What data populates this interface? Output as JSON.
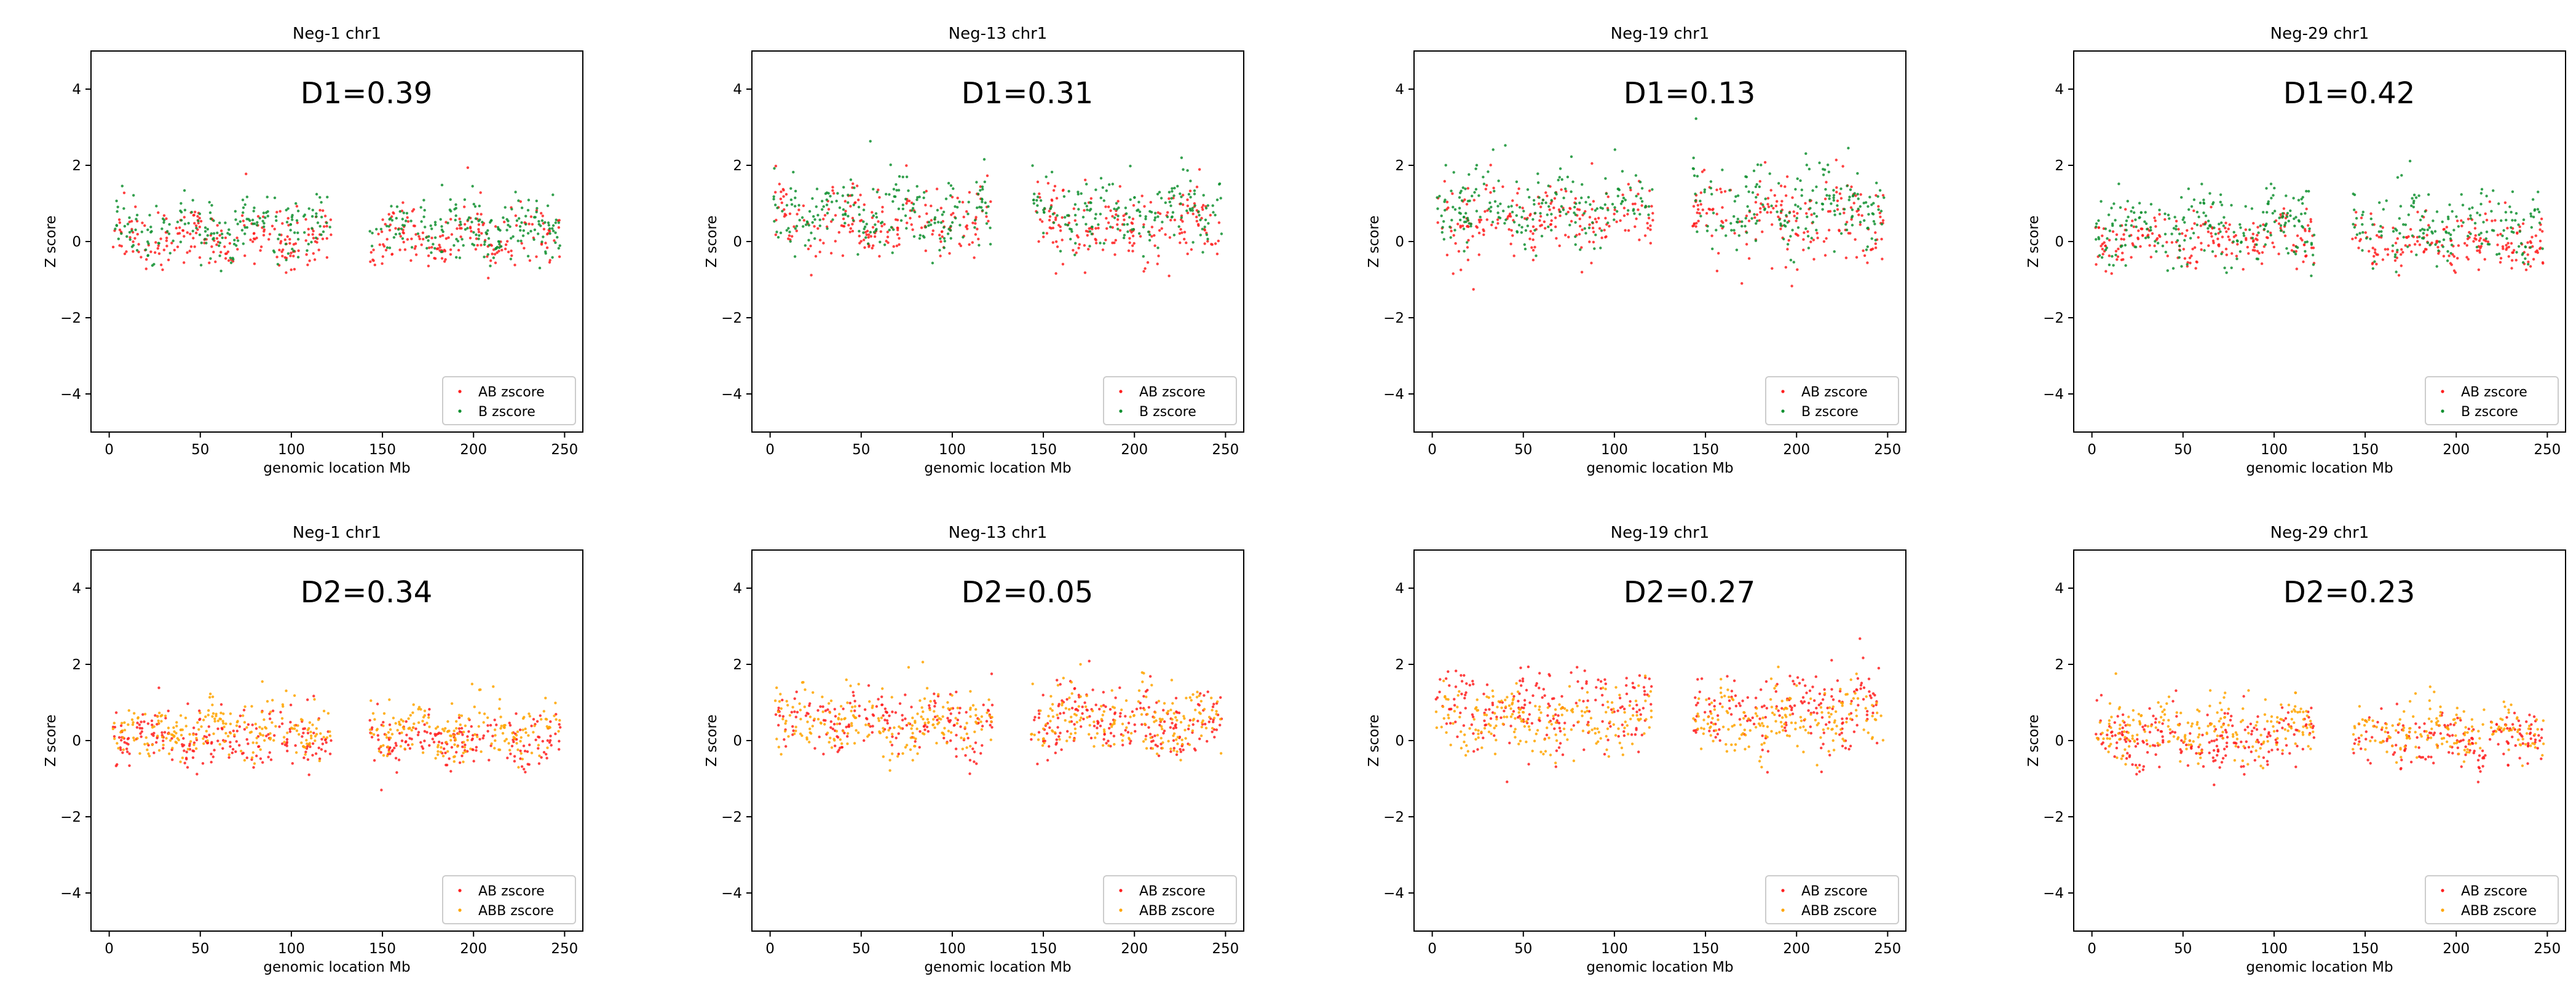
{
  "figure": {
    "x_ticks": [
      0,
      50,
      100,
      150,
      200,
      250
    ],
    "y_ticks": [
      -4,
      -2,
      0,
      2,
      4
    ],
    "xlim": [
      -10,
      260
    ],
    "ylim": [
      -5,
      5
    ],
    "xlabel": "genomic location Mb",
    "ylabel": "Z score",
    "colors": {
      "AB": "#ff2020",
      "B": "#109030",
      "ABB": "#ffa500"
    }
  },
  "chart_data": [
    {
      "type": "scatter",
      "title": "Neg-1 chr1",
      "annotation": "D1=0.39",
      "xlabel": "genomic location Mb",
      "ylabel": "Z score",
      "xlim": [
        -10,
        260
      ],
      "ylim": [
        -5,
        5
      ],
      "gap_mb": [
        122,
        143
      ],
      "legend_position": "lower-right",
      "legend": [
        "AB zscore",
        "B zscore"
      ],
      "series": [
        {
          "name": "AB zscore",
          "color": "#ff2020",
          "mean": 0.05,
          "spread": 0.35
        },
        {
          "name": "B zscore",
          "color": "#109030",
          "mean": 0.35,
          "spread": 0.4
        }
      ]
    },
    {
      "type": "scatter",
      "title": "Neg-13 chr1",
      "annotation": "D1=0.31",
      "xlabel": "genomic location Mb",
      "ylabel": "Z score",
      "xlim": [
        -10,
        260
      ],
      "ylim": [
        -5,
        5
      ],
      "gap_mb": [
        122,
        143
      ],
      "legend_position": "lower-right",
      "legend": [
        "AB zscore",
        "B zscore"
      ],
      "series": [
        {
          "name": "AB zscore",
          "color": "#ff2020",
          "mean": 0.45,
          "spread": 0.45
        },
        {
          "name": "B zscore",
          "color": "#109030",
          "mean": 0.75,
          "spread": 0.45
        }
      ]
    },
    {
      "type": "scatter",
      "title": "Neg-19 chr1",
      "annotation": "D1=0.13",
      "xlabel": "genomic location Mb",
      "ylabel": "Z score",
      "xlim": [
        -10,
        260
      ],
      "ylim": [
        -5,
        5
      ],
      "gap_mb": [
        122,
        143
      ],
      "legend_position": "lower-right",
      "legend": [
        "AB zscore",
        "B zscore"
      ],
      "series": [
        {
          "name": "AB zscore",
          "color": "#ff2020",
          "mean": 0.6,
          "spread": 0.5
        },
        {
          "name": "B zscore",
          "color": "#109030",
          "mean": 0.9,
          "spread": 0.5
        }
      ]
    },
    {
      "type": "scatter",
      "title": "Neg-29 chr1",
      "annotation": "D1=0.42",
      "xlabel": "genomic location Mb",
      "ylabel": "Z score",
      "xlim": [
        -10,
        260
      ],
      "ylim": [
        -5,
        5
      ],
      "gap_mb": [
        122,
        143
      ],
      "legend_position": "lower-right",
      "legend": [
        "AB zscore",
        "B zscore"
      ],
      "series": [
        {
          "name": "AB zscore",
          "color": "#ff2020",
          "mean": 0.0,
          "spread": 0.35
        },
        {
          "name": "B zscore",
          "color": "#109030",
          "mean": 0.4,
          "spread": 0.45
        }
      ]
    },
    {
      "type": "scatter",
      "title": "Neg-1 chr1",
      "annotation": "D2=0.34",
      "xlabel": "genomic location Mb",
      "ylabel": "Z score",
      "xlim": [
        -10,
        260
      ],
      "ylim": [
        -5,
        5
      ],
      "gap_mb": [
        122,
        143
      ],
      "legend_position": "lower-right",
      "legend": [
        "AB zscore",
        "ABB zscore"
      ],
      "series": [
        {
          "name": "AB zscore",
          "color": "#ff2020",
          "mean": 0.0,
          "spread": 0.35
        },
        {
          "name": "ABB zscore",
          "color": "#ffa500",
          "mean": 0.3,
          "spread": 0.35
        }
      ]
    },
    {
      "type": "scatter",
      "title": "Neg-13 chr1",
      "annotation": "D2=0.05",
      "xlabel": "genomic location Mb",
      "ylabel": "Z score",
      "xlim": [
        -10,
        260
      ],
      "ylim": [
        -5,
        5
      ],
      "gap_mb": [
        122,
        143
      ],
      "legend_position": "lower-right",
      "legend": [
        "AB zscore",
        "ABB zscore"
      ],
      "series": [
        {
          "name": "AB zscore",
          "color": "#ff2020",
          "mean": 0.45,
          "spread": 0.4
        },
        {
          "name": "ABB zscore",
          "color": "#ffa500",
          "mean": 0.5,
          "spread": 0.4
        }
      ]
    },
    {
      "type": "scatter",
      "title": "Neg-19 chr1",
      "annotation": "D2=0.27",
      "xlabel": "genomic location Mb",
      "ylabel": "Z score",
      "xlim": [
        -10,
        260
      ],
      "ylim": [
        -5,
        5
      ],
      "gap_mb": [
        122,
        143
      ],
      "legend_position": "lower-right",
      "legend": [
        "AB zscore",
        "ABB zscore"
      ],
      "series": [
        {
          "name": "AB zscore",
          "color": "#ff2020",
          "mean": 0.85,
          "spread": 0.5
        },
        {
          "name": "ABB zscore",
          "color": "#ffa500",
          "mean": 0.5,
          "spread": 0.4
        }
      ]
    },
    {
      "type": "scatter",
      "title": "Neg-29 chr1",
      "annotation": "D2=0.23",
      "xlabel": "genomic location Mb",
      "ylabel": "Z score",
      "xlim": [
        -10,
        260
      ],
      "ylim": [
        -5,
        5
      ],
      "gap_mb": [
        122,
        143
      ],
      "legend_position": "lower-right",
      "legend": [
        "AB zscore",
        "ABB zscore"
      ],
      "series": [
        {
          "name": "AB zscore",
          "color": "#ff2020",
          "mean": 0.0,
          "spread": 0.35
        },
        {
          "name": "ABB zscore",
          "color": "#ffa500",
          "mean": 0.25,
          "spread": 0.35
        }
      ]
    }
  ]
}
